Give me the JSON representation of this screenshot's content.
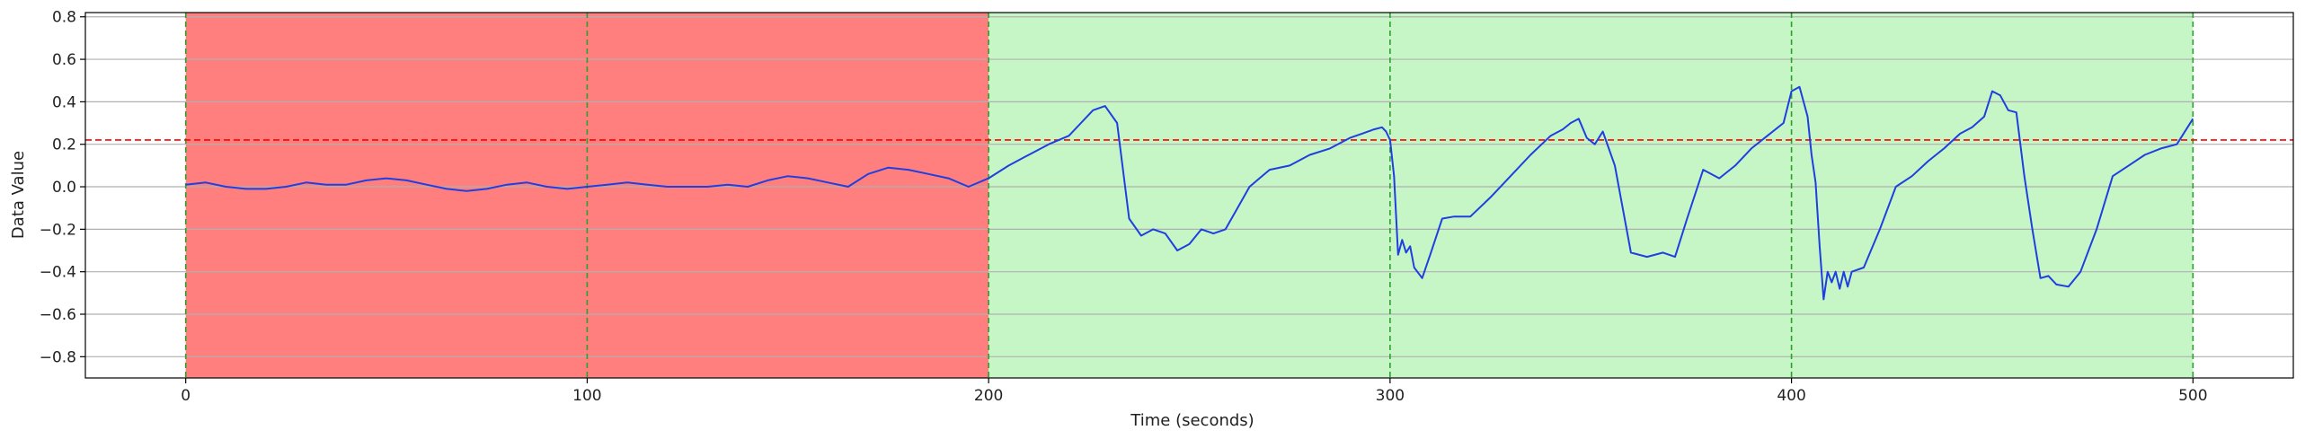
{
  "chart_data": {
    "type": "line",
    "title": "",
    "xlabel": "Time (seconds)",
    "ylabel": "Data Value",
    "xlim": [
      -25,
      525
    ],
    "ylim": [
      -0.9,
      0.82
    ],
    "xticks": [
      0,
      100,
      200,
      300,
      400,
      500
    ],
    "yticks": [
      -0.8,
      -0.6,
      -0.4,
      -0.2,
      0.0,
      0.2,
      0.4,
      0.6,
      0.8
    ],
    "xtick_labels": [
      "0",
      "100",
      "200",
      "300",
      "400",
      "500"
    ],
    "ytick_labels": [
      "−0.8",
      "−0.6",
      "−0.4",
      "−0.2",
      "0.0",
      "0.2",
      "0.4",
      "0.6",
      "0.8"
    ],
    "grid": "horizontal",
    "regions": [
      {
        "x0": 0,
        "x1": 200,
        "color": "#ff7f7f"
      },
      {
        "x0": 200,
        "x1": 500,
        "color": "#c6f6c6"
      }
    ],
    "vlines": {
      "x": [
        0,
        100,
        200,
        300,
        400,
        500
      ],
      "color": "#2ca02c",
      "style": "dashed"
    },
    "hline": {
      "y": 0.22,
      "color": "#ff0000",
      "style": "dashed"
    },
    "series": [
      {
        "color": "#1f3fe0",
        "x": [
          0,
          5,
          10,
          15,
          20,
          25,
          30,
          35,
          40,
          45,
          50,
          55,
          60,
          65,
          70,
          75,
          80,
          85,
          90,
          95,
          100,
          105,
          110,
          115,
          120,
          125,
          130,
          135,
          140,
          145,
          150,
          155,
          160,
          165,
          170,
          175,
          180,
          185,
          190,
          195,
          200,
          205,
          210,
          215,
          220,
          223,
          226,
          229,
          232,
          235,
          238,
          241,
          244,
          247,
          250,
          253,
          256,
          259,
          262,
          265,
          270,
          275,
          280,
          285,
          290,
          293,
          296,
          298,
          299,
          300,
          301,
          302,
          303,
          304,
          305,
          306,
          308,
          310,
          313,
          316,
          320,
          325,
          330,
          335,
          340,
          343,
          345,
          347,
          349,
          351,
          353,
          356,
          360,
          364,
          368,
          371,
          374,
          378,
          382,
          386,
          390,
          394,
          398,
          400,
          402,
          404,
          405,
          406,
          407,
          408,
          409,
          410,
          411,
          412,
          413,
          414,
          415,
          418,
          422,
          426,
          430,
          434,
          438,
          442,
          445,
          448,
          450,
          452,
          454,
          456,
          458,
          460,
          462,
          464,
          466,
          469,
          472,
          476,
          480,
          484,
          488,
          492,
          496,
          500
        ],
        "y": [
          0.01,
          0.02,
          0.0,
          -0.01,
          -0.01,
          0.0,
          0.02,
          0.01,
          0.01,
          0.03,
          0.04,
          0.03,
          0.01,
          -0.01,
          -0.02,
          -0.01,
          0.01,
          0.02,
          0.0,
          -0.01,
          0.0,
          0.01,
          0.02,
          0.01,
          0.0,
          0.0,
          0.0,
          0.01,
          0.0,
          0.03,
          0.05,
          0.04,
          0.02,
          0.0,
          0.06,
          0.09,
          0.08,
          0.06,
          0.04,
          0.0,
          0.04,
          0.1,
          0.15,
          0.2,
          0.24,
          0.3,
          0.36,
          0.38,
          0.3,
          -0.15,
          -0.23,
          -0.2,
          -0.22,
          -0.3,
          -0.27,
          -0.2,
          -0.22,
          -0.2,
          -0.1,
          0.0,
          0.08,
          0.1,
          0.15,
          0.18,
          0.23,
          0.25,
          0.27,
          0.28,
          0.26,
          0.22,
          0.05,
          -0.32,
          -0.25,
          -0.31,
          -0.28,
          -0.38,
          -0.43,
          -0.32,
          -0.15,
          -0.14,
          -0.14,
          -0.05,
          0.05,
          0.15,
          0.24,
          0.27,
          0.3,
          0.32,
          0.23,
          0.2,
          0.26,
          0.1,
          -0.31,
          -0.33,
          -0.31,
          -0.33,
          -0.15,
          0.08,
          0.04,
          0.1,
          0.18,
          0.24,
          0.3,
          0.45,
          0.47,
          0.33,
          0.15,
          0.02,
          -0.28,
          -0.53,
          -0.4,
          -0.45,
          -0.4,
          -0.48,
          -0.4,
          -0.47,
          -0.4,
          -0.38,
          -0.2,
          0.0,
          0.05,
          0.12,
          0.18,
          0.25,
          0.28,
          0.33,
          0.45,
          0.43,
          0.36,
          0.35,
          0.05,
          -0.2,
          -0.43,
          -0.42,
          -0.46,
          -0.47,
          -0.4,
          -0.2,
          0.05,
          0.1,
          0.15,
          0.18,
          0.2,
          0.32
        ]
      }
    ]
  }
}
